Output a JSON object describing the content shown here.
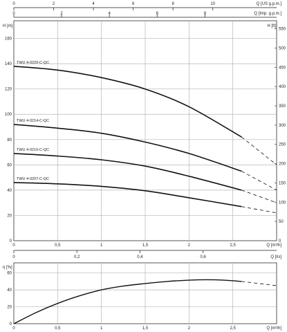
{
  "chart_data": [
    {
      "type": "line",
      "panel": "head-curves",
      "x_axis_label": "Q [m³/h]",
      "x_ticks": [
        0,
        0.5,
        1,
        1.5,
        2,
        2.5
      ],
      "x_tick_labels": [
        "0",
        "0,5",
        "1",
        "1,5",
        "2",
        "2,5"
      ],
      "xlim": [
        0,
        3
      ],
      "y_axis_label": "H [m]",
      "y_ticks": [
        0,
        20,
        40,
        60,
        80,
        100,
        120,
        140,
        160
      ],
      "ylim": [
        0,
        174
      ],
      "y2_axis_label": "H [ft]",
      "y2_ticks": [
        0,
        50,
        100,
        150,
        200,
        250,
        300,
        350,
        400,
        450,
        500,
        550
      ],
      "top_axis_us": {
        "label": "Q [US g.p.m.]",
        "ticks": [
          0,
          2,
          4,
          6,
          8,
          10
        ],
        "tick_labels": [
          "0",
          "2",
          "4",
          "6",
          "8",
          "10"
        ],
        "per_m3h": 4.403
      },
      "top_axis_imp": {
        "label": "Q [Imp. g.p.m.]",
        "ticks": [
          0,
          2,
          4,
          6,
          8
        ],
        "tick_labels": [
          "0",
          "2",
          "4",
          "6",
          "8"
        ],
        "per_m3h": 3.666
      },
      "bottom_axis_ls": {
        "label": "Q [l/s]",
        "ticks": [
          0,
          0.2,
          0.4,
          0.6
        ],
        "tick_labels": [
          "0",
          "0,2",
          "0,4",
          "0,6"
        ],
        "per_m3h": 0.2778
      },
      "grid": true,
      "series": [
        {
          "name": "TWU 4-0220-C-QC",
          "x": [
            0,
            0.5,
            1,
            1.5,
            2,
            2.6
          ],
          "y": [
            138,
            135,
            129,
            120,
            106,
            82
          ],
          "extension_x": [
            2.6,
            3.0
          ],
          "extension_y": [
            82,
            60
          ]
        },
        {
          "name": "TWU 4-0214-C-QC",
          "x": [
            0,
            0.5,
            1,
            1.5,
            2,
            2.6
          ],
          "y": [
            92,
            89,
            85,
            78,
            69,
            55
          ],
          "extension_x": [
            2.6,
            3.0
          ],
          "extension_y": [
            55,
            40
          ]
        },
        {
          "name": "TWU 4-0210-C-QC",
          "x": [
            0,
            0.5,
            1,
            1.5,
            2,
            2.6
          ],
          "y": [
            69,
            67,
            64,
            59,
            51,
            40
          ],
          "extension_x": [
            2.6,
            3.0
          ],
          "extension_y": [
            40,
            30
          ]
        },
        {
          "name": "TWU 4-0207-C-QC",
          "x": [
            0,
            0.5,
            1,
            1.5,
            2,
            2.6
          ],
          "y": [
            46,
            45,
            43,
            39.5,
            34,
            27
          ],
          "extension_x": [
            2.6,
            3.0
          ],
          "extension_y": [
            27,
            22
          ]
        }
      ]
    },
    {
      "type": "line",
      "panel": "efficiency",
      "x_axis_label": "Q [m³/h]",
      "x_ticks": [
        0,
        0.5,
        1,
        1.5,
        2,
        2.5
      ],
      "x_tick_labels": [
        "0",
        "0,5",
        "1",
        "1,5",
        "2",
        "2,5"
      ],
      "xlim": [
        0,
        3
      ],
      "y_axis_label": "η [%]",
      "y_ticks": [
        0,
        20,
        40,
        60
      ],
      "ylim": [
        0,
        72
      ],
      "grid": true,
      "series": [
        {
          "x": [
            0,
            0.25,
            0.5,
            0.75,
            1,
            1.25,
            1.5,
            1.75,
            2,
            2.2,
            2.4,
            2.6
          ],
          "y": [
            0,
            13,
            24,
            33,
            40,
            44.5,
            47.5,
            50,
            51.5,
            52,
            51.5,
            50
          ],
          "extension_x": [
            2.6,
            3.0
          ],
          "extension_y": [
            50,
            45
          ]
        }
      ]
    }
  ]
}
